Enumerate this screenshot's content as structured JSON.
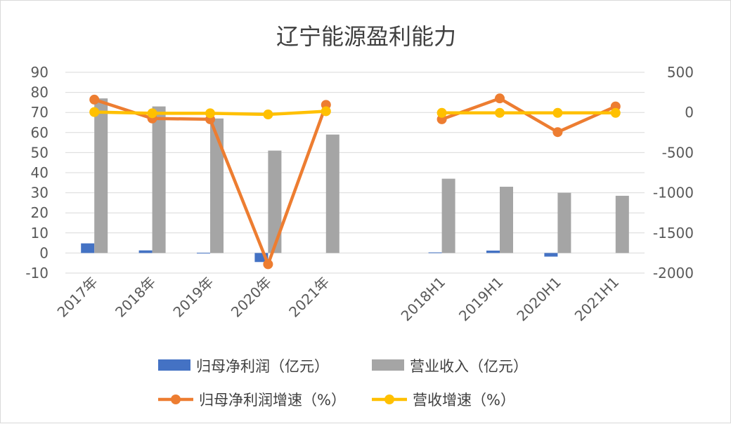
{
  "chart_data": {
    "type": "bar",
    "title": "辽宁能源盈利能力",
    "categories": [
      "2017年",
      "2018年",
      "2019年",
      "2020年",
      "2021年",
      "",
      "2018H1",
      "2019H1",
      "2020H1",
      "2021H1"
    ],
    "y_left": {
      "ylim": [
        -10,
        90
      ],
      "ticks": [
        "90",
        "80",
        "70",
        "60",
        "50",
        "40",
        "30",
        "20",
        "10",
        "0",
        "-10"
      ]
    },
    "y_right": {
      "ylim": [
        -2000,
        500
      ],
      "ticks": [
        "500",
        "0",
        "-500",
        "-1000",
        "-1500",
        "-2000"
      ]
    },
    "series": [
      {
        "name": "归母净利润（亿元）",
        "kind": "bar",
        "axis": "left",
        "color": "#4472c4",
        "values": [
          4.8,
          1.3,
          0.1,
          -4.5,
          null,
          null,
          0.3,
          1.2,
          -1.8,
          null
        ]
      },
      {
        "name": "营业收入（亿元）",
        "kind": "bar",
        "axis": "left",
        "color": "#a5a5a5",
        "values": [
          77,
          73,
          67,
          51,
          59,
          null,
          37,
          33,
          30,
          28.5
        ]
      },
      {
        "name": "归母净利润增速（%）",
        "kind": "line",
        "axis": "right",
        "color": "#ed7d31",
        "values": [
          160,
          -75,
          -85,
          -1890,
          95,
          null,
          -85,
          175,
          -245,
          75
        ]
      },
      {
        "name": "营收增速（%）",
        "kind": "line",
        "axis": "right",
        "color": "#ffc000",
        "values": [
          5,
          -10,
          -10,
          -25,
          15,
          null,
          -5,
          -5,
          -5,
          -5
        ]
      }
    ],
    "legend_position": "bottom"
  }
}
